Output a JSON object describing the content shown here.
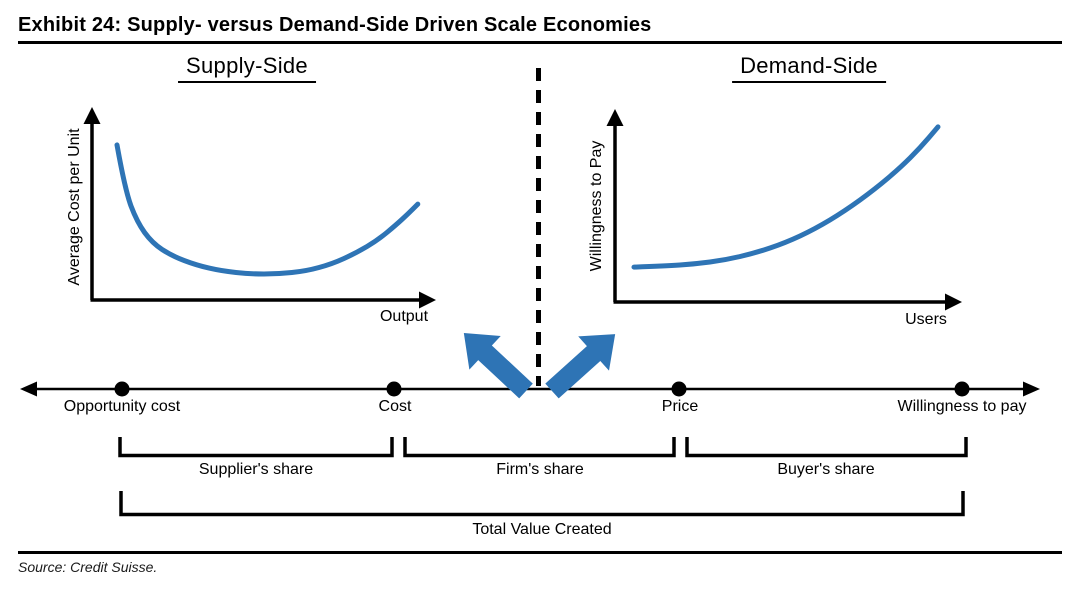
{
  "title": "Exhibit 24: Supply- versus Demand-Side Driven Scale Economies",
  "source_note": "Source: Credit Suisse.",
  "colors": {
    "accent_blue": "#2E74B5",
    "ink": "#000000",
    "background": "#FFFFFF"
  },
  "panels": {
    "supply": {
      "heading": "Supply-Side",
      "y_axis_label": "Average Cost per Unit",
      "x_axis_label": "Output"
    },
    "demand": {
      "heading": "Demand-Side",
      "y_axis_label": "Willingness to Pay",
      "x_axis_label": "Users"
    }
  },
  "value_line": {
    "points": [
      {
        "label": "Opportunity cost"
      },
      {
        "label": "Cost"
      },
      {
        "label": "Price"
      },
      {
        "label": "Willingness to pay"
      }
    ]
  },
  "brackets": {
    "supplier": "Supplier's share",
    "firm": "Firm's share",
    "buyer": "Buyer's share",
    "total": "Total Value Created"
  },
  "chart_data": [
    {
      "type": "line",
      "title": "Supply-Side",
      "xlabel": "Output",
      "ylabel": "Average Cost per Unit",
      "axes_numeric": false,
      "grid": false,
      "series": [
        {
          "name": "Average cost per unit vs output",
          "shape": "U-shaped: average cost falls with scale then rises",
          "x_norm": [
            0.074,
            0.098,
            0.133,
            0.178,
            0.237,
            0.308,
            0.385,
            0.467,
            0.55,
            0.633,
            0.71,
            0.781,
            0.846,
            0.899,
            0.935,
            0.964
          ],
          "y_norm": [
            0.852,
            0.604,
            0.429,
            0.313,
            0.242,
            0.192,
            0.159,
            0.143,
            0.143,
            0.159,
            0.198,
            0.258,
            0.33,
            0.412,
            0.473,
            0.527
          ]
        }
      ]
    },
    {
      "type": "line",
      "title": "Demand-Side",
      "xlabel": "Users",
      "ylabel": "Willingness to Pay",
      "axes_numeric": false,
      "grid": false,
      "series": [
        {
          "name": "Willingness to pay vs users",
          "shape": "convex increasing: willingness to pay rises with number of users",
          "x_norm": [
            0.056,
            0.147,
            0.235,
            0.324,
            0.412,
            0.5,
            0.588,
            0.676,
            0.765,
            0.838,
            0.897,
            0.95
          ],
          "y_norm": [
            0.192,
            0.198,
            0.209,
            0.231,
            0.269,
            0.324,
            0.401,
            0.5,
            0.621,
            0.736,
            0.846,
            0.962
          ]
        }
      ]
    }
  ]
}
